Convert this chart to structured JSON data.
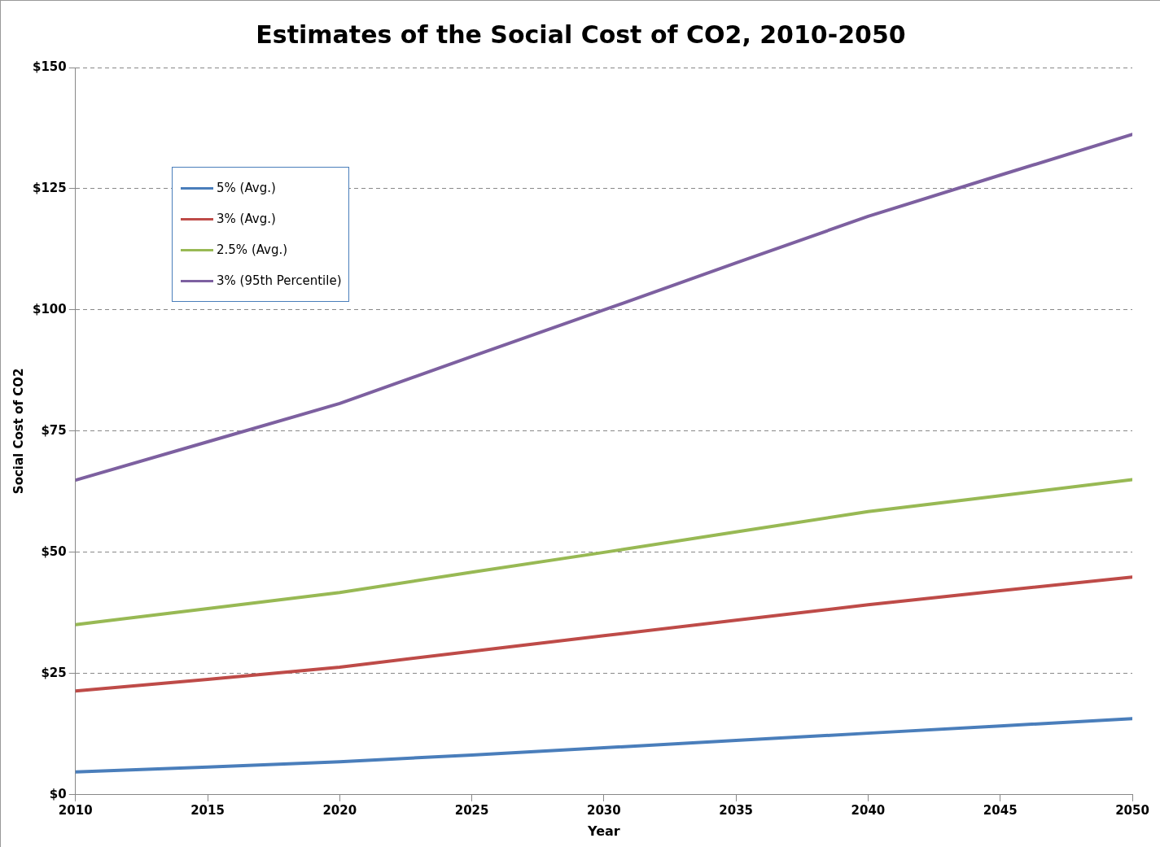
{
  "chart_data": {
    "type": "line",
    "title": "Estimates of the Social Cost of CO2, 2010-2050",
    "xlabel": "Year",
    "ylabel": "Social Cost of CO2",
    "x": [
      2010,
      2015,
      2020,
      2025,
      2030,
      2035,
      2040,
      2045,
      2050
    ],
    "series": [
      {
        "name": "5% (Avg.)",
        "color": "#4a7ebb",
        "values": [
          4.7,
          5.7,
          6.8,
          8.2,
          9.7,
          11.2,
          12.7,
          14.2,
          15.7
        ]
      },
      {
        "name": "3% (Avg.)",
        "color": "#be4b48",
        "values": [
          21.4,
          23.8,
          26.3,
          29.6,
          32.8,
          36.0,
          39.2,
          42.1,
          44.9
        ]
      },
      {
        "name": "2.5% (Avg.)",
        "color": "#98b954",
        "values": [
          35.1,
          38.4,
          41.7,
          45.9,
          50.0,
          54.2,
          58.4,
          61.7,
          65.0
        ]
      },
      {
        "name": "3% (95th Percentile)",
        "color": "#7d60a0",
        "values": [
          64.9,
          72.8,
          80.7,
          90.4,
          100.0,
          109.7,
          119.3,
          127.8,
          136.2
        ]
      }
    ],
    "xlim": [
      2010,
      2050
    ],
    "xticks": [
      2010,
      2015,
      2020,
      2025,
      2030,
      2035,
      2040,
      2045,
      2050
    ],
    "ylim": [
      0,
      150
    ],
    "yticks": [
      {
        "value": 0,
        "label": "$0"
      },
      {
        "value": 25,
        "label": "$25"
      },
      {
        "value": 50,
        "label": "$50"
      },
      {
        "value": 75,
        "label": "$75"
      },
      {
        "value": 100,
        "label": "$100"
      },
      {
        "value": 125,
        "label": "$125"
      },
      {
        "value": 150,
        "label": "$150"
      }
    ],
    "grid": "y",
    "legend": "top left",
    "marker": "none",
    "line_style": "solid"
  }
}
